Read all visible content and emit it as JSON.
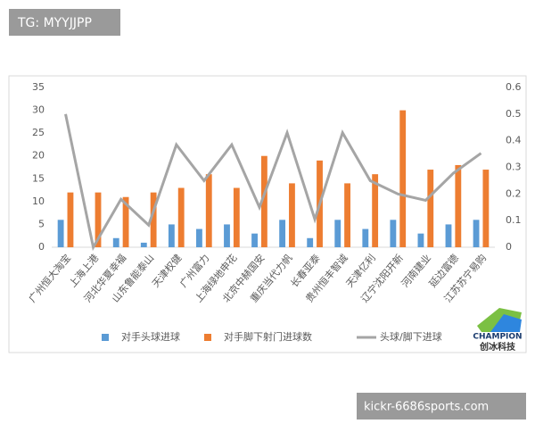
{
  "watermark_top": "TG: MYYJJPP",
  "watermark_bottom": "kickr-6686sports.com",
  "logo": {
    "name": "CHAMPION",
    "subtitle": "创冰科技"
  },
  "chart_data": {
    "type": "bar",
    "categories": [
      "广州恒大淘宝",
      "上海上港",
      "河北华夏幸福",
      "山东鲁能泰山",
      "天津权健",
      "广州富力",
      "上海绿地申花",
      "北京中赫国安",
      "重庆当代力帆",
      "长春亚泰",
      "贵州恒丰智诚",
      "天津亿利",
      "辽宁沈阳开新",
      "河南建业",
      "延边富德",
      "江苏苏宁易购"
    ],
    "series": [
      {
        "name": "对手头球进球",
        "color": "#5b9bd5",
        "values": [
          6,
          0,
          2,
          1,
          5,
          4,
          5,
          3,
          6,
          2,
          6,
          4,
          6,
          3,
          5,
          6
        ]
      },
      {
        "name": "对手脚下射门进球数",
        "color": "#ed7d31",
        "values": [
          12,
          12,
          11,
          12,
          13,
          16,
          13,
          20,
          14,
          19,
          14,
          16,
          30,
          17,
          18,
          17
        ]
      },
      {
        "name": "头球/脚下进球",
        "color": "#a5a5a5",
        "type": "line",
        "axis": "y2",
        "values": [
          0.5,
          0,
          0.18,
          0.083,
          0.385,
          0.25,
          0.385,
          0.15,
          0.43,
          0.105,
          0.43,
          0.25,
          0.2,
          0.176,
          0.278,
          0.353
        ]
      }
    ],
    "ylim": [
      0,
      35
    ],
    "yticks": [
      0,
      5,
      10,
      15,
      20,
      25,
      30,
      35
    ],
    "y2lim": [
      0,
      0.6
    ],
    "y2ticks": [
      0,
      0.1,
      0.2,
      0.3,
      0.4,
      0.5,
      0.6
    ],
    "grid": false,
    "legend": "bottom"
  }
}
